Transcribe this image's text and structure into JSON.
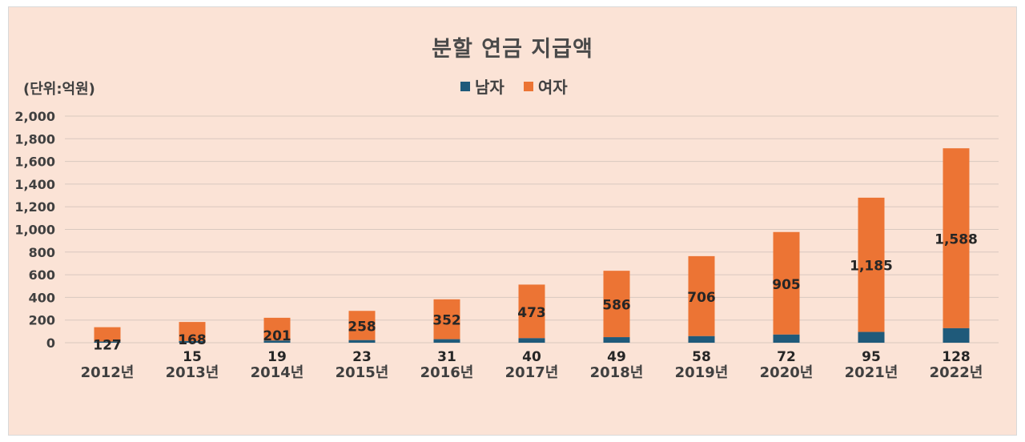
{
  "chart_data": {
    "type": "bar",
    "stacked": true,
    "title": "분할 연금 지급액",
    "unit_label": "(단위:억원)",
    "categories": [
      "2012년",
      "2013년",
      "2014년",
      "2015년",
      "2016년",
      "2017년",
      "2018년",
      "2019년",
      "2020년",
      "2021년",
      "2022년"
    ],
    "series": [
      {
        "name": "남자",
        "color": "#1f5a7a",
        "values": [
          10,
          15,
          19,
          23,
          31,
          40,
          49,
          58,
          72,
          95,
          128
        ],
        "labels": [
          "",
          "15",
          "19",
          "23",
          "31",
          "40",
          "49",
          "58",
          "72",
          "95",
          "128"
        ]
      },
      {
        "name": "여자",
        "color": "#ec7434",
        "values": [
          127,
          168,
          201,
          258,
          352,
          473,
          586,
          706,
          905,
          1185,
          1588
        ],
        "labels": [
          "127",
          "168",
          "201",
          "258",
          "352",
          "473",
          "586",
          "706",
          "905",
          "1,185",
          "1,588"
        ]
      }
    ],
    "ylim": [
      0,
      2000
    ],
    "yticks": [
      "0",
      "200",
      "400",
      "600",
      "800",
      "1,000",
      "1,200",
      "1,400",
      "1,600",
      "1,800",
      "2,000"
    ],
    "grid": true,
    "legend_position": "top-center"
  }
}
